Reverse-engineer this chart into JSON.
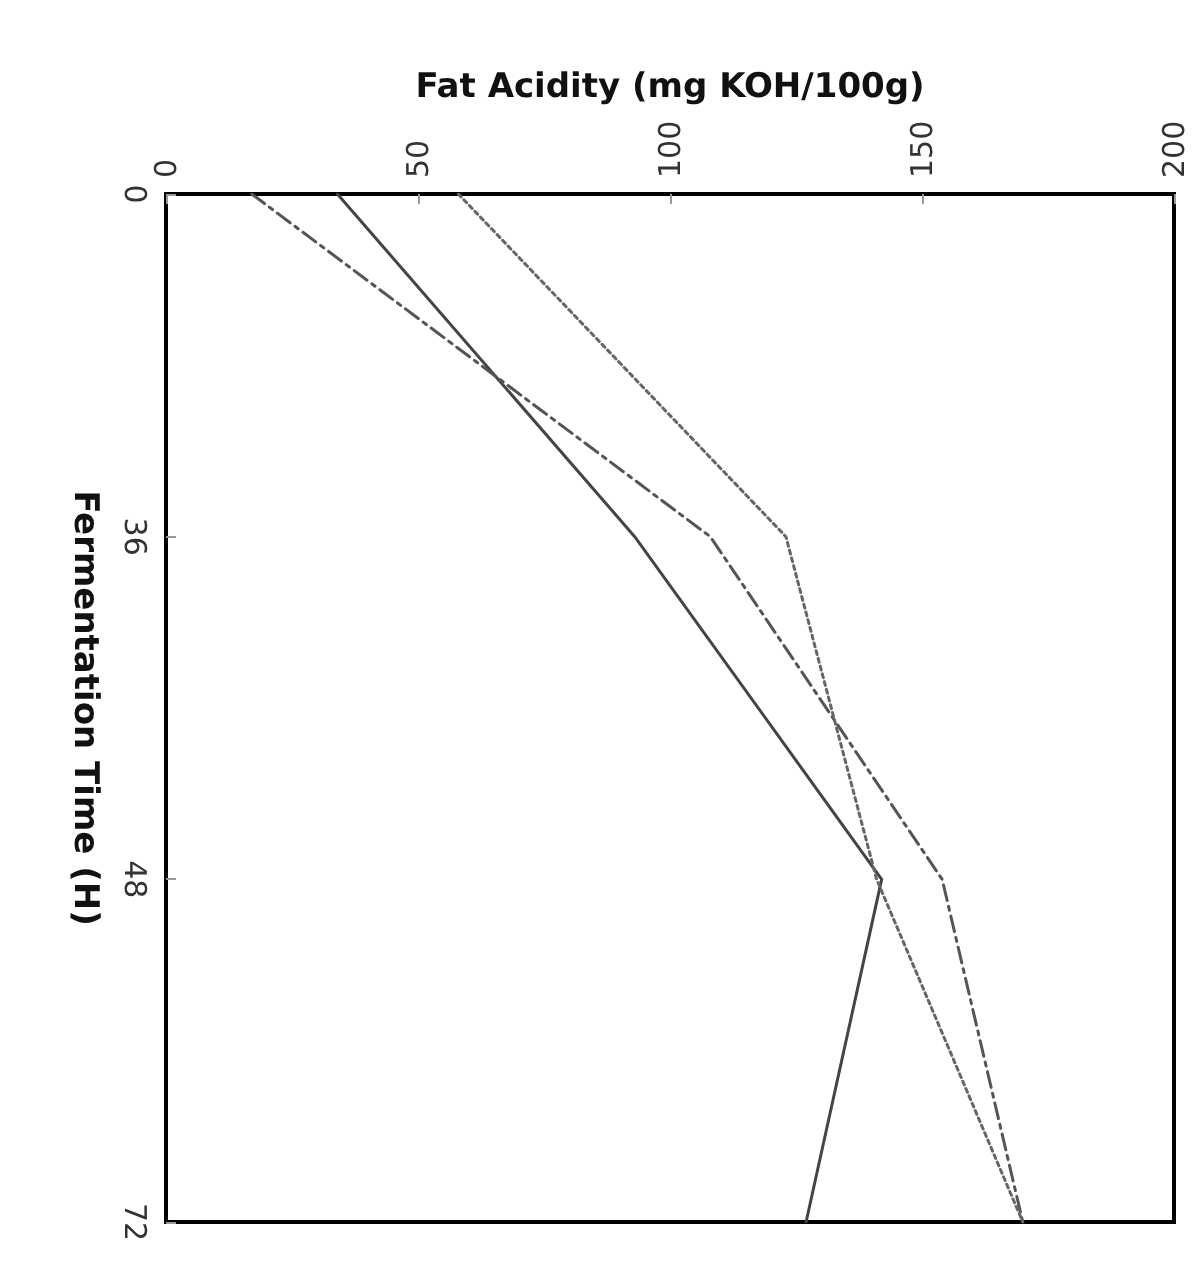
{
  "chart_data": {
    "type": "line",
    "orientation": "horizontal",
    "xlabel": "Fat Acidity (mg KOH/100g)",
    "ylabel": "Fermentation Time (H)",
    "categories": [
      "0",
      "36",
      "48",
      "72"
    ],
    "series": [
      {
        "color": "#444444",
        "line_style": "solid",
        "values": [
          34,
          93,
          142,
          127
        ]
      },
      {
        "color": "#555555",
        "line_style": "dashed",
        "values": [
          17,
          108,
          154,
          170
        ]
      },
      {
        "color": "#666666",
        "line_style": "dotted",
        "values": [
          58,
          123,
          141,
          170
        ]
      }
    ],
    "xlim": [
      0,
      200
    ],
    "xticks": [
      0,
      50,
      100,
      150,
      200
    ],
    "grid": false,
    "marker": "none"
  }
}
